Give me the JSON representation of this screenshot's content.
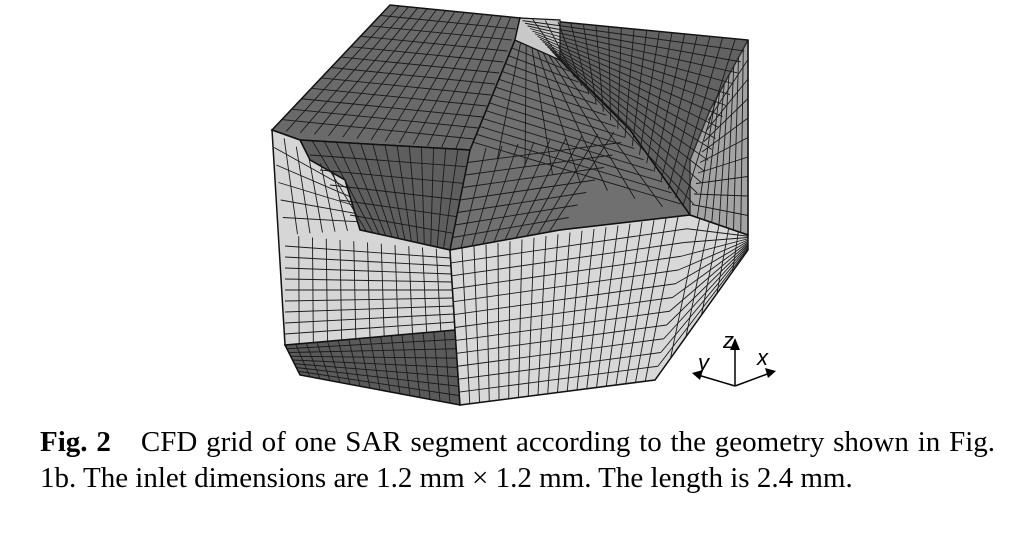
{
  "figure": {
    "axis_labels": {
      "z": "z",
      "y": "y",
      "x": "x"
    }
  },
  "caption": {
    "label": "Fig. 2",
    "text": "CFD grid of one SAR segment according to the geometry shown in Fig. 1b. The inlet dimensions are 1.2 mm × 1.2 mm. The length is 2.4 mm."
  }
}
